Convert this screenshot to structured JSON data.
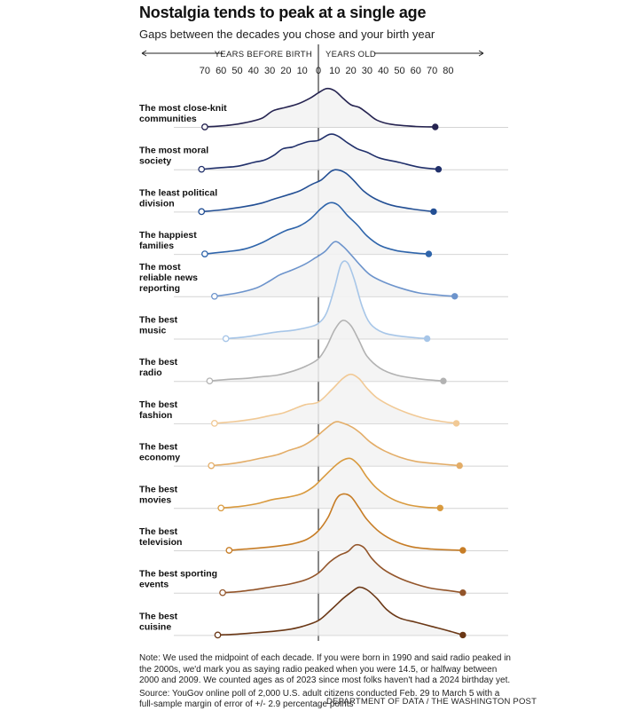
{
  "title": "Nostalgia tends to peak at a single age",
  "subtitle": "Gaps between the decades you chose and your birth year",
  "note": "Note: We used the midpoint of each decade. If you were born in 1990 and said radio peaked in the 2000s, we'd mark you as saying radio peaked when you were 14.5, or halfway between 2000 and 2009. We counted ages as of 2023 since most folks haven't had a 2024 birthday yet.",
  "source": "Source: YouGov online poll of 2,000 U.S. adult citizens conducted Feb. 29 to March 5 with a full-sample margin of error of +/- 2.9 percentage points",
  "credit": "DEPARTMENT OF DATA / THE WASHINGTON POST",
  "chart_data": {
    "type": "area",
    "axis": {
      "left_label": "YEARS BEFORE BIRTH",
      "right_label": "YEARS OLD",
      "ticks": [
        -70,
        -60,
        -50,
        -40,
        -30,
        -20,
        -10,
        0,
        10,
        20,
        30,
        40,
        50,
        60,
        70,
        80
      ],
      "tick_labels": [
        "70",
        "60",
        "50",
        "40",
        "30",
        "20",
        "10",
        "0",
        "10",
        "20",
        "30",
        "40",
        "50",
        "60",
        "70",
        "80"
      ],
      "xlim": [
        -70,
        80
      ],
      "y_unit": "relative density (0–1, estimated)"
    },
    "series": [
      {
        "name": "The most close-knit communities",
        "label_lines": [
          "The most close-knit",
          "communities"
        ],
        "color": "#262451",
        "x_start": -70,
        "x_end": 72,
        "points": [
          [
            -70,
            0
          ],
          [
            -55,
            0.04
          ],
          [
            -45,
            0.1
          ],
          [
            -35,
            0.2
          ],
          [
            -28,
            0.38
          ],
          [
            -20,
            0.46
          ],
          [
            -12,
            0.55
          ],
          [
            -5,
            0.68
          ],
          [
            0,
            0.8
          ],
          [
            5,
            0.9
          ],
          [
            10,
            0.85
          ],
          [
            15,
            0.68
          ],
          [
            20,
            0.52
          ],
          [
            25,
            0.46
          ],
          [
            30,
            0.33
          ],
          [
            36,
            0.16
          ],
          [
            45,
            0.06
          ],
          [
            60,
            0.01
          ],
          [
            72,
            0
          ]
        ]
      },
      {
        "name": "The most moral society",
        "label_lines": [
          "The most moral",
          "society"
        ],
        "color": "#21306b",
        "x_start": -72,
        "x_end": 74,
        "points": [
          [
            -72,
            0
          ],
          [
            -60,
            0.04
          ],
          [
            -50,
            0.07
          ],
          [
            -40,
            0.16
          ],
          [
            -33,
            0.22
          ],
          [
            -27,
            0.34
          ],
          [
            -22,
            0.48
          ],
          [
            -16,
            0.52
          ],
          [
            -12,
            0.58
          ],
          [
            -6,
            0.65
          ],
          [
            0,
            0.68
          ],
          [
            7,
            0.82
          ],
          [
            12,
            0.78
          ],
          [
            18,
            0.62
          ],
          [
            24,
            0.48
          ],
          [
            30,
            0.4
          ],
          [
            38,
            0.26
          ],
          [
            50,
            0.16
          ],
          [
            62,
            0.05
          ],
          [
            74,
            0
          ]
        ]
      },
      {
        "name": "The least political division",
        "label_lines": [
          "The least political",
          "division"
        ],
        "color": "#234f94",
        "x_start": -72,
        "x_end": 71,
        "points": [
          [
            -72,
            0
          ],
          [
            -60,
            0.04
          ],
          [
            -45,
            0.12
          ],
          [
            -35,
            0.2
          ],
          [
            -27,
            0.3
          ],
          [
            -20,
            0.38
          ],
          [
            -12,
            0.48
          ],
          [
            -4,
            0.64
          ],
          [
            2,
            0.75
          ],
          [
            8,
            0.95
          ],
          [
            12,
            0.98
          ],
          [
            17,
            0.9
          ],
          [
            22,
            0.72
          ],
          [
            28,
            0.48
          ],
          [
            35,
            0.3
          ],
          [
            45,
            0.15
          ],
          [
            58,
            0.06
          ],
          [
            71,
            0
          ]
        ]
      },
      {
        "name": "The happiest families",
        "label_lines": [
          "The happiest",
          "families"
        ],
        "color": "#2f65ab",
        "x_start": -70,
        "x_end": 68,
        "points": [
          [
            -70,
            0
          ],
          [
            -55,
            0.06
          ],
          [
            -45,
            0.12
          ],
          [
            -35,
            0.26
          ],
          [
            -28,
            0.4
          ],
          [
            -20,
            0.55
          ],
          [
            -12,
            0.65
          ],
          [
            -5,
            0.82
          ],
          [
            2,
            1.08
          ],
          [
            7,
            1.2
          ],
          [
            12,
            1.15
          ],
          [
            18,
            0.9
          ],
          [
            24,
            0.68
          ],
          [
            30,
            0.42
          ],
          [
            38,
            0.2
          ],
          [
            48,
            0.08
          ],
          [
            60,
            0.02
          ],
          [
            68,
            0
          ]
        ]
      },
      {
        "name": "The most reliable news reporting",
        "label_lines": [
          "The most",
          "reliable news",
          "reporting"
        ],
        "color": "#6d94cc",
        "x_start": -64,
        "x_end": 84,
        "points": [
          [
            -64,
            0
          ],
          [
            -50,
            0.08
          ],
          [
            -38,
            0.2
          ],
          [
            -30,
            0.36
          ],
          [
            -24,
            0.5
          ],
          [
            -16,
            0.62
          ],
          [
            -8,
            0.76
          ],
          [
            -2,
            0.9
          ],
          [
            4,
            1.05
          ],
          [
            10,
            1.28
          ],
          [
            15,
            1.18
          ],
          [
            20,
            0.98
          ],
          [
            26,
            0.72
          ],
          [
            32,
            0.5
          ],
          [
            40,
            0.34
          ],
          [
            50,
            0.2
          ],
          [
            62,
            0.08
          ],
          [
            74,
            0.03
          ],
          [
            84,
            0
          ]
        ]
      },
      {
        "name": "The best music",
        "label_lines": [
          "The best",
          "music"
        ],
        "color": "#a7c6e8",
        "x_start": -57,
        "x_end": 67,
        "points": [
          [
            -57,
            0
          ],
          [
            -45,
            0.04
          ],
          [
            -35,
            0.1
          ],
          [
            -25,
            0.16
          ],
          [
            -15,
            0.2
          ],
          [
            -5,
            0.28
          ],
          [
            0,
            0.36
          ],
          [
            5,
            0.6
          ],
          [
            10,
            1.2
          ],
          [
            14,
            1.75
          ],
          [
            18,
            1.78
          ],
          [
            22,
            1.4
          ],
          [
            27,
            0.75
          ],
          [
            32,
            0.35
          ],
          [
            40,
            0.14
          ],
          [
            50,
            0.06
          ],
          [
            60,
            0.02
          ],
          [
            67,
            0
          ]
        ]
      },
      {
        "name": "The best radio",
        "label_lines": [
          "The best",
          "radio"
        ],
        "color": "#b2b2b2",
        "x_start": -67,
        "x_end": 77,
        "points": [
          [
            -67,
            0
          ],
          [
            -55,
            0.04
          ],
          [
            -45,
            0.06
          ],
          [
            -35,
            0.1
          ],
          [
            -25,
            0.14
          ],
          [
            -15,
            0.24
          ],
          [
            -7,
            0.36
          ],
          [
            0,
            0.52
          ],
          [
            5,
            0.8
          ],
          [
            10,
            1.2
          ],
          [
            15,
            1.42
          ],
          [
            20,
            1.3
          ],
          [
            25,
            0.95
          ],
          [
            30,
            0.58
          ],
          [
            38,
            0.3
          ],
          [
            48,
            0.14
          ],
          [
            60,
            0.06
          ],
          [
            70,
            0.02
          ],
          [
            77,
            0
          ]
        ]
      },
      {
        "name": "The best fashion",
        "label_lines": [
          "The best",
          "fashion"
        ],
        "color": "#f1c995",
        "x_start": -64,
        "x_end": 85,
        "points": [
          [
            -64,
            0
          ],
          [
            -52,
            0.04
          ],
          [
            -40,
            0.1
          ],
          [
            -30,
            0.18
          ],
          [
            -22,
            0.24
          ],
          [
            -15,
            0.34
          ],
          [
            -8,
            0.44
          ],
          [
            0,
            0.5
          ],
          [
            8,
            0.78
          ],
          [
            15,
            1.05
          ],
          [
            20,
            1.15
          ],
          [
            25,
            1.05
          ],
          [
            30,
            0.82
          ],
          [
            36,
            0.6
          ],
          [
            45,
            0.4
          ],
          [
            55,
            0.24
          ],
          [
            65,
            0.12
          ],
          [
            75,
            0.05
          ],
          [
            85,
            0
          ]
        ]
      },
      {
        "name": "The best economy",
        "label_lines": [
          "The best",
          "economy"
        ],
        "color": "#e3ad68",
        "x_start": -66,
        "x_end": 87,
        "points": [
          [
            -66,
            0
          ],
          [
            -55,
            0.04
          ],
          [
            -45,
            0.1
          ],
          [
            -35,
            0.18
          ],
          [
            -25,
            0.26
          ],
          [
            -18,
            0.36
          ],
          [
            -10,
            0.46
          ],
          [
            -3,
            0.62
          ],
          [
            3,
            0.82
          ],
          [
            10,
            1.02
          ],
          [
            15,
            1.0
          ],
          [
            21,
            0.9
          ],
          [
            26,
            0.76
          ],
          [
            32,
            0.55
          ],
          [
            40,
            0.36
          ],
          [
            50,
            0.2
          ],
          [
            60,
            0.1
          ],
          [
            72,
            0.05
          ],
          [
            87,
            0
          ]
        ]
      },
      {
        "name": "The best movies",
        "label_lines": [
          "The best",
          "movies"
        ],
        "color": "#d99a3e",
        "x_start": -60,
        "x_end": 75,
        "points": [
          [
            -60,
            0
          ],
          [
            -48,
            0.04
          ],
          [
            -38,
            0.1
          ],
          [
            -28,
            0.2
          ],
          [
            -18,
            0.26
          ],
          [
            -10,
            0.34
          ],
          [
            -3,
            0.5
          ],
          [
            3,
            0.72
          ],
          [
            10,
            0.98
          ],
          [
            15,
            1.12
          ],
          [
            20,
            1.16
          ],
          [
            25,
            1.0
          ],
          [
            30,
            0.72
          ],
          [
            36,
            0.46
          ],
          [
            45,
            0.22
          ],
          [
            55,
            0.08
          ],
          [
            65,
            0.02
          ],
          [
            75,
            0
          ]
        ]
      },
      {
        "name": "The best television",
        "label_lines": [
          "The best",
          "television"
        ],
        "color": "#c77d26",
        "x_start": -55,
        "x_end": 89,
        "points": [
          [
            -55,
            0
          ],
          [
            -45,
            0.03
          ],
          [
            -35,
            0.06
          ],
          [
            -25,
            0.1
          ],
          [
            -15,
            0.16
          ],
          [
            -7,
            0.26
          ],
          [
            0,
            0.46
          ],
          [
            6,
            0.78
          ],
          [
            11,
            1.2
          ],
          [
            15,
            1.32
          ],
          [
            20,
            1.26
          ],
          [
            25,
            1.0
          ],
          [
            30,
            0.72
          ],
          [
            38,
            0.42
          ],
          [
            48,
            0.2
          ],
          [
            58,
            0.08
          ],
          [
            70,
            0.03
          ],
          [
            89,
            0
          ]
        ]
      },
      {
        "name": "The best sporting events",
        "label_lines": [
          "The best sporting",
          "events"
        ],
        "color": "#93552a",
        "x_start": -59,
        "x_end": 89,
        "points": [
          [
            -59,
            0
          ],
          [
            -48,
            0.03
          ],
          [
            -38,
            0.08
          ],
          [
            -28,
            0.14
          ],
          [
            -18,
            0.2
          ],
          [
            -8,
            0.3
          ],
          [
            0,
            0.46
          ],
          [
            7,
            0.72
          ],
          [
            13,
            0.88
          ],
          [
            18,
            0.96
          ],
          [
            23,
            1.12
          ],
          [
            28,
            1.06
          ],
          [
            33,
            0.8
          ],
          [
            40,
            0.55
          ],
          [
            50,
            0.34
          ],
          [
            60,
            0.2
          ],
          [
            70,
            0.1
          ],
          [
            80,
            0.05
          ],
          [
            89,
            0
          ]
        ]
      },
      {
        "name": "The best cuisine",
        "label_lines": [
          "The best",
          "cuisine"
        ],
        "color": "#6b3816",
        "x_start": -62,
        "x_end": 89,
        "points": [
          [
            -62,
            0
          ],
          [
            -50,
            0.02
          ],
          [
            -40,
            0.05
          ],
          [
            -30,
            0.08
          ],
          [
            -20,
            0.12
          ],
          [
            -10,
            0.2
          ],
          [
            0,
            0.34
          ],
          [
            8,
            0.6
          ],
          [
            15,
            0.85
          ],
          [
            20,
            1.0
          ],
          [
            25,
            1.12
          ],
          [
            30,
            1.06
          ],
          [
            36,
            0.86
          ],
          [
            42,
            0.6
          ],
          [
            50,
            0.4
          ],
          [
            60,
            0.3
          ],
          [
            70,
            0.2
          ],
          [
            80,
            0.1
          ],
          [
            89,
            0
          ]
        ]
      }
    ]
  }
}
